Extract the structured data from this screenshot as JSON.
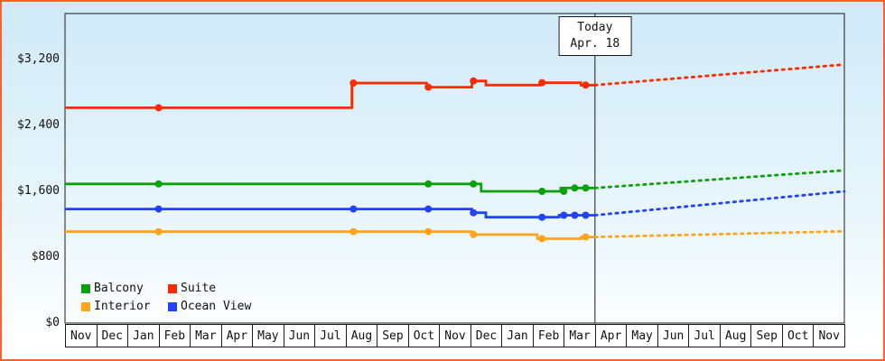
{
  "frame": {
    "border_color": "#ff6226",
    "background_top": "#d0eaf8",
    "background_bottom": "#ffffff"
  },
  "chart_data": {
    "type": "line",
    "axis_color": "#1a1a1a",
    "grid": false,
    "x_unit": "month-index",
    "y_unit": "USD",
    "ylim": [
      0,
      3760
    ],
    "legend": {
      "position": "bottom-left",
      "items": [
        "Balcony",
        "Suite",
        "Interior",
        "Ocean View"
      ]
    },
    "today": {
      "x": 17,
      "line1": "Today",
      "line2": "Apr. 18"
    },
    "y_ticks": [
      {
        "label": "$0",
        "value": 0
      },
      {
        "label": "$800",
        "value": 800
      },
      {
        "label": "$1,600",
        "value": 1600
      },
      {
        "label": "$2,400",
        "value": 2400
      },
      {
        "label": "$3,200",
        "value": 3200
      }
    ],
    "months": [
      "Nov",
      "Dec",
      "Jan",
      "Feb",
      "Mar",
      "Apr",
      "May",
      "Jun",
      "Jul",
      "Aug",
      "Sep",
      "Oct",
      "Nov",
      "Dec",
      "Jan",
      "Feb",
      "Mar",
      "Apr",
      "May",
      "Jun",
      "Jul",
      "Aug",
      "Sep",
      "Oct",
      "Nov"
    ],
    "series": [
      {
        "name": "Balcony",
        "color": "#0ca00c",
        "solid": [
          [
            0,
            1690
          ],
          [
            13.35,
            1690
          ],
          [
            13.35,
            1600
          ],
          [
            15.9,
            1600
          ],
          [
            15.9,
            1640
          ],
          [
            17,
            1640
          ]
        ],
        "dots": [
          [
            3,
            1690
          ],
          [
            11.65,
            1690
          ],
          [
            13.1,
            1690
          ],
          [
            15.3,
            1600
          ],
          [
            16,
            1600
          ],
          [
            16.35,
            1640
          ],
          [
            16.7,
            1640
          ]
        ],
        "dotted": [
          [
            17,
            1640
          ],
          [
            25,
            1855
          ]
        ]
      },
      {
        "name": "Suite",
        "color": "#fb2b01",
        "solid": [
          [
            0,
            2615
          ],
          [
            9.2,
            2615
          ],
          [
            9.2,
            2915
          ],
          [
            11.6,
            2915
          ],
          [
            11.6,
            2865
          ],
          [
            13.05,
            2865
          ],
          [
            13.05,
            2940
          ],
          [
            13.5,
            2940
          ],
          [
            13.5,
            2890
          ],
          [
            15.25,
            2890
          ],
          [
            15.25,
            2920
          ],
          [
            16.55,
            2920
          ],
          [
            16.55,
            2890
          ],
          [
            17,
            2890
          ]
        ],
        "dots": [
          [
            3,
            2615
          ],
          [
            9.25,
            2915
          ],
          [
            11.65,
            2865
          ],
          [
            13.1,
            2940
          ],
          [
            15.3,
            2920
          ],
          [
            16.7,
            2890
          ]
        ],
        "dotted": [
          [
            17,
            2890
          ],
          [
            25,
            3140
          ]
        ]
      },
      {
        "name": "Interior",
        "color": "#ffa41c",
        "solid": [
          [
            0,
            1110
          ],
          [
            13.05,
            1110
          ],
          [
            13.05,
            1075
          ],
          [
            15.15,
            1075
          ],
          [
            15.15,
            1025
          ],
          [
            16.55,
            1025
          ],
          [
            16.55,
            1045
          ],
          [
            17,
            1045
          ]
        ],
        "dots": [
          [
            3,
            1110
          ],
          [
            9.25,
            1110
          ],
          [
            11.65,
            1110
          ],
          [
            13.1,
            1075
          ],
          [
            15.3,
            1025
          ],
          [
            16.7,
            1045
          ]
        ],
        "dotted": [
          [
            17,
            1045
          ],
          [
            25,
            1115
          ]
        ]
      },
      {
        "name": "Ocean View",
        "color": "#2142f5",
        "solid": [
          [
            0,
            1385
          ],
          [
            13.05,
            1385
          ],
          [
            13.05,
            1340
          ],
          [
            13.5,
            1340
          ],
          [
            13.5,
            1285
          ],
          [
            15.85,
            1285
          ],
          [
            15.85,
            1310
          ],
          [
            17,
            1310
          ]
        ],
        "dots": [
          [
            3,
            1385
          ],
          [
            9.25,
            1385
          ],
          [
            11.65,
            1385
          ],
          [
            13.1,
            1340
          ],
          [
            15.3,
            1285
          ],
          [
            16,
            1310
          ],
          [
            16.35,
            1310
          ],
          [
            16.7,
            1310
          ]
        ],
        "dotted": [
          [
            17,
            1310
          ],
          [
            25,
            1600
          ]
        ]
      }
    ]
  }
}
